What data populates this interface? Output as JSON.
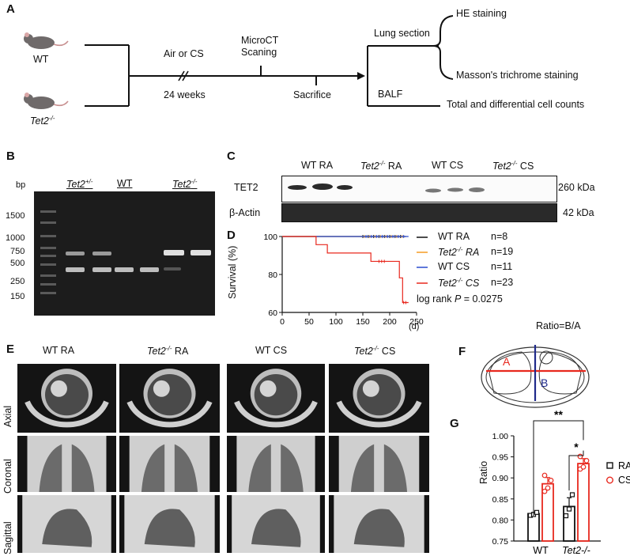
{
  "panels": {
    "A": "A",
    "B": "B",
    "C": "C",
    "D": "D",
    "E": "E",
    "F": "F",
    "G": "G"
  },
  "schematic": {
    "wt": "WT",
    "tet2_base": "Tet2",
    "tet2_sup": "-/-",
    "air_cs": "Air or CS",
    "weeks": "24 weeks",
    "microct_line1": "MicroCT",
    "microct_line2": "Scaning",
    "sacrifice": "Sacrifice",
    "lung_section": "Lung section",
    "he": "HE staining",
    "masson": "Masson's trichrome staining",
    "balf": "BALF",
    "cell_counts": "Total and differential cell counts"
  },
  "gel": {
    "bp_label": "bp",
    "ladder": [
      "1500",
      "1000",
      "750",
      "500",
      "250",
      "150"
    ],
    "groups": [
      {
        "base": "Tet2",
        "sup": "+/-",
        "italic": true
      },
      {
        "base": "WT",
        "sup": "",
        "italic": false
      },
      {
        "base": "Tet2",
        "sup": "-/-",
        "italic": true
      }
    ]
  },
  "blot": {
    "lanes": [
      {
        "base": "WT RA",
        "sup": "",
        "suffix": "",
        "italic": false
      },
      {
        "base": "Tet2",
        "sup": "-/-",
        "suffix": " RA",
        "italic": true
      },
      {
        "base": "WT CS",
        "sup": "",
        "suffix": "",
        "italic": false
      },
      {
        "base": "Tet2",
        "sup": "-/-",
        "suffix": " CS",
        "italic": true
      }
    ],
    "tet2_label": "TET2",
    "actin_label": "β-Actin",
    "tet2_kda": "260 kDa",
    "actin_kda": "42 kDa"
  },
  "survival": {
    "ylabel": "Survival (%)",
    "xunit": "(d)",
    "legend": [
      {
        "name": "WT RA",
        "n": "n=8",
        "italic": false
      },
      {
        "base": "Tet2",
        "sup": "-/-",
        "suffix": " RA",
        "n": "n=19",
        "italic": true
      },
      {
        "name": "WT CS",
        "n": "n=11",
        "italic": false
      },
      {
        "base": "Tet2",
        "sup": "-/-",
        "suffix": " CS",
        "n": "n=23",
        "italic": true
      }
    ],
    "logrank_prefix": "log rank ",
    "logrank_p": "P",
    "logrank_val": " = 0.0275"
  },
  "microct": {
    "columns": [
      {
        "base": "WT RA",
        "sup": "",
        "suffix": "",
        "italic": false
      },
      {
        "base": "Tet2",
        "sup": "-/-",
        "suffix": " RA",
        "italic": true
      },
      {
        "base": "WT CS",
        "sup": "",
        "suffix": "",
        "italic": false
      },
      {
        "base": "Tet2",
        "sup": "-/-",
        "suffix": " CS",
        "italic": true
      }
    ],
    "rows": [
      "Axial",
      "Coronal",
      "Sagittal"
    ]
  },
  "ratio_diagram": {
    "title": "Ratio=B/A",
    "a": "A",
    "b": "B"
  },
  "bar_sig": {
    "double": "**",
    "single": "*"
  },
  "colors": {
    "red": "#e8281e",
    "black": "#111111",
    "orange": "#f59a23",
    "blue": "#2a4ccf",
    "navy": "#1f2a8a",
    "gel_bg": "#1c1c1c",
    "ct_bg": "#141414"
  },
  "chart_data": [
    {
      "type": "line",
      "name": "Kaplan-Meier survival",
      "xlabel": "(d)",
      "ylabel": "Survival (%)",
      "xlim": [
        0,
        250
      ],
      "ylim": [
        60,
        100
      ],
      "xticks": [
        0,
        50,
        100,
        150,
        200,
        250
      ],
      "yticks": [
        60,
        80,
        100
      ],
      "series": [
        {
          "name": "WT RA",
          "color": "#111111",
          "x": [
            0,
            230
          ],
          "y": [
            100,
            100
          ]
        },
        {
          "name": "Tet2-/- RA",
          "color": "#f59a23",
          "x": [
            0,
            230
          ],
          "y": [
            100,
            100
          ]
        },
        {
          "name": "WT CS",
          "color": "#2a4ccf",
          "x": [
            0,
            235
          ],
          "y": [
            100,
            100
          ]
        },
        {
          "name": "Tet2-/- CS",
          "color": "#e8281e",
          "x": [
            0,
            63,
            63,
            84,
            84,
            165,
            165,
            218,
            218,
            224,
            224,
            235
          ],
          "y": [
            100,
            100,
            95.7,
            95.7,
            91.3,
            91.3,
            86.9,
            86.9,
            78.2,
            78.2,
            65.2,
            65.2
          ]
        }
      ]
    },
    {
      "type": "bar",
      "name": "Ratio B/A",
      "categories": [
        "WT",
        "Tet2-/-"
      ],
      "ylabel": "Ratio",
      "ylim": [
        0.75,
        1.0
      ],
      "yticks": [
        "0.75",
        "0.80",
        "0.85",
        "0.90",
        "0.95",
        "1.00"
      ],
      "series": [
        {
          "name": "RA",
          "color": "#111111",
          "values": [
            0.815,
            0.832
          ],
          "points": [
            [
              0.811,
              0.813,
              0.818
            ],
            [
              0.81,
              0.826,
              0.86
            ]
          ]
        },
        {
          "name": "CS",
          "color": "#e8281e",
          "values": [
            0.886,
            0.934
          ],
          "points": [
            [
              0.868,
              0.876,
              0.894,
              0.906
            ],
            [
              0.921,
              0.926,
              0.941,
              0.951
            ]
          ]
        }
      ]
    }
  ]
}
